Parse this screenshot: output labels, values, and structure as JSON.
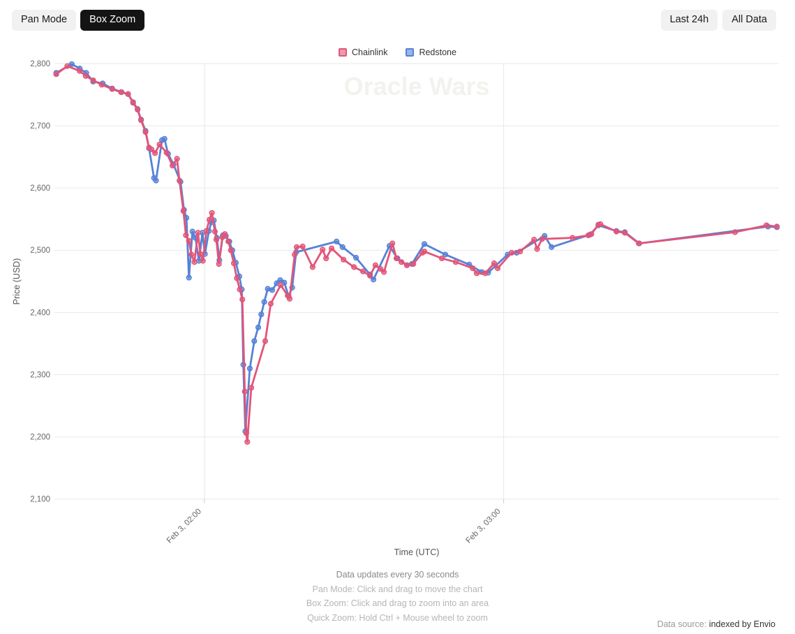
{
  "toolbar": {
    "pan_mode": "Pan Mode",
    "box_zoom": "Box Zoom",
    "last_24h": "Last 24h",
    "all_data": "All Data",
    "active_mode": "Box Zoom"
  },
  "legend": [
    {
      "name": "Redstone",
      "color": "#e15578"
    },
    {
      "name": "Chainlink",
      "color": "#5582d7"
    }
  ],
  "watermark": "Oracle Wars",
  "footer": {
    "line1": "Data updates every 30 seconds",
    "line2": "Pan Mode: Click and drag to move the chart",
    "line3": "Box Zoom: Click and drag to zoom into an area",
    "line4": "Quick Zoom: Hold Ctrl + Mouse wheel to zoom"
  },
  "data_source": {
    "prefix": "Data source: ",
    "link": "indexed by Envio"
  },
  "chart_data": {
    "type": "line",
    "title": "Oracle Wars",
    "xlabel": "Time (UTC)",
    "ylabel": "Price (USD)",
    "ylim": [
      2100,
      2800
    ],
    "grid": true,
    "legend_position": "top",
    "x_unit": "minutes after Feb 3, 01:30 UTC (estimated from axis)",
    "y_ticks": [
      {
        "label": "2,100",
        "value": 2100
      },
      {
        "label": "2,200",
        "value": 2200
      },
      {
        "label": "2,300",
        "value": 2300
      },
      {
        "label": "2,400",
        "value": 2400
      },
      {
        "label": "2,500",
        "value": 2500
      },
      {
        "label": "2,600",
        "value": 2600
      },
      {
        "label": "2,700",
        "value": 2700
      },
      {
        "label": "2,800",
        "value": 2800
      }
    ],
    "x_ticks": [
      {
        "label": "Feb 3, 02:00",
        "minute": 30
      },
      {
        "label": "Feb 3, 03:00",
        "minute": 90
      }
    ],
    "series": [
      {
        "name": "Chainlink",
        "color": "#5582d7",
        "points": [
          [
            0.3,
            2785
          ],
          [
            3.4,
            2799
          ],
          [
            5,
            2792
          ],
          [
            6.3,
            2785
          ],
          [
            7.7,
            2771
          ],
          [
            9.6,
            2768
          ],
          [
            11.5,
            2760
          ],
          [
            13.4,
            2754
          ],
          [
            14.7,
            2751
          ],
          [
            15.7,
            2738
          ],
          [
            16.6,
            2727
          ],
          [
            17.3,
            2710
          ],
          [
            18.2,
            2692
          ],
          [
            18.9,
            2664
          ],
          [
            19.9,
            2616
          ],
          [
            20.3,
            2612
          ],
          [
            21.5,
            2677
          ],
          [
            22,
            2679
          ],
          [
            22.7,
            2655
          ],
          [
            23.8,
            2638
          ],
          [
            25.2,
            2610
          ],
          [
            25.9,
            2565
          ],
          [
            26.4,
            2552
          ],
          [
            26.9,
            2456
          ],
          [
            27.6,
            2530
          ],
          [
            28.2,
            2520
          ],
          [
            28.9,
            2483
          ],
          [
            29.6,
            2528
          ],
          [
            30.1,
            2494
          ],
          [
            30.9,
            2531
          ],
          [
            31.4,
            2545
          ],
          [
            31.9,
            2548
          ],
          [
            32.5,
            2520
          ],
          [
            33,
            2484
          ],
          [
            33.7,
            2524
          ],
          [
            34.3,
            2523
          ],
          [
            35,
            2514
          ],
          [
            35.6,
            2500
          ],
          [
            36.3,
            2480
          ],
          [
            37,
            2458
          ],
          [
            37.5,
            2437
          ],
          [
            37.8,
            2316
          ],
          [
            38.2,
            2209
          ],
          [
            39.1,
            2310
          ],
          [
            40,
            2354
          ],
          [
            40.8,
            2376
          ],
          [
            41.4,
            2397
          ],
          [
            42,
            2417
          ],
          [
            42.7,
            2438
          ],
          [
            43.6,
            2436
          ],
          [
            44.5,
            2447
          ],
          [
            45.2,
            2452
          ],
          [
            46,
            2448
          ],
          [
            46.9,
            2426
          ],
          [
            47.6,
            2440
          ],
          [
            48.4,
            2497
          ],
          [
            56.5,
            2514
          ],
          [
            57.7,
            2505
          ],
          [
            60.4,
            2488
          ],
          [
            63.2,
            2461
          ],
          [
            63.9,
            2453
          ],
          [
            67.1,
            2507
          ],
          [
            68.7,
            2487
          ],
          [
            70.6,
            2476
          ],
          [
            71.6,
            2478
          ],
          [
            74.1,
            2510
          ],
          [
            78.3,
            2493
          ],
          [
            83.1,
            2477
          ],
          [
            85.6,
            2465
          ],
          [
            86.9,
            2464
          ],
          [
            90.8,
            2493
          ],
          [
            92.6,
            2496
          ],
          [
            98.2,
            2523
          ],
          [
            99.6,
            2505
          ],
          [
            107.3,
            2525
          ],
          [
            109,
            2540
          ],
          [
            112.6,
            2531
          ],
          [
            114.3,
            2529
          ],
          [
            117.2,
            2511
          ],
          [
            143,
            2538
          ],
          [
            144.8,
            2537
          ]
        ]
      },
      {
        "name": "Redstone",
        "color": "#e15578",
        "points": [
          [
            0.3,
            2783
          ],
          [
            2.5,
            2796
          ],
          [
            5,
            2788
          ],
          [
            6.2,
            2780
          ],
          [
            7.7,
            2773
          ],
          [
            9.4,
            2766
          ],
          [
            11.5,
            2759
          ],
          [
            13.3,
            2754
          ],
          [
            14.7,
            2751
          ],
          [
            15.7,
            2737
          ],
          [
            16.6,
            2726
          ],
          [
            17.3,
            2709
          ],
          [
            18.2,
            2690
          ],
          [
            18.9,
            2665
          ],
          [
            19.4,
            2662
          ],
          [
            20.1,
            2656
          ],
          [
            21,
            2670
          ],
          [
            22.4,
            2657
          ],
          [
            23.6,
            2636
          ],
          [
            24.5,
            2647
          ],
          [
            25,
            2612
          ],
          [
            25.8,
            2563
          ],
          [
            26.3,
            2524
          ],
          [
            26.9,
            2515
          ],
          [
            27.4,
            2493
          ],
          [
            28,
            2481
          ],
          [
            28.7,
            2528
          ],
          [
            29.2,
            2494
          ],
          [
            29.7,
            2483
          ],
          [
            30.4,
            2531
          ],
          [
            31,
            2549
          ],
          [
            31.5,
            2560
          ],
          [
            32.1,
            2530
          ],
          [
            32.4,
            2517
          ],
          [
            32.9,
            2478
          ],
          [
            33.6,
            2521
          ],
          [
            34.1,
            2526
          ],
          [
            34.8,
            2514
          ],
          [
            35.3,
            2500
          ],
          [
            35.9,
            2479
          ],
          [
            36.5,
            2455
          ],
          [
            37.1,
            2437
          ],
          [
            37.6,
            2421
          ],
          [
            38.1,
            2273
          ],
          [
            38.4,
            2206
          ],
          [
            38.6,
            2192
          ],
          [
            39.4,
            2279
          ],
          [
            42.2,
            2354
          ],
          [
            43.3,
            2414
          ],
          [
            45.3,
            2444
          ],
          [
            46.7,
            2427
          ],
          [
            47.1,
            2422
          ],
          [
            48.1,
            2493
          ],
          [
            48.5,
            2505
          ],
          [
            49.7,
            2506
          ],
          [
            51.7,
            2473
          ],
          [
            53.7,
            2501
          ],
          [
            54.4,
            2487
          ],
          [
            55.5,
            2503
          ],
          [
            57.9,
            2485
          ],
          [
            60,
            2473
          ],
          [
            61.8,
            2466
          ],
          [
            63.2,
            2459
          ],
          [
            64.3,
            2476
          ],
          [
            65.3,
            2470
          ],
          [
            66,
            2465
          ],
          [
            67.7,
            2511
          ],
          [
            68.5,
            2487
          ],
          [
            69.5,
            2481
          ],
          [
            70.6,
            2476
          ],
          [
            71.9,
            2478
          ],
          [
            73.7,
            2496
          ],
          [
            74.1,
            2498
          ],
          [
            77.6,
            2487
          ],
          [
            80.4,
            2481
          ],
          [
            83.8,
            2471
          ],
          [
            84.6,
            2463
          ],
          [
            86.3,
            2463
          ],
          [
            88.1,
            2479
          ],
          [
            88.8,
            2471
          ],
          [
            91.6,
            2496
          ],
          [
            93.3,
            2498
          ],
          [
            96.1,
            2517
          ],
          [
            96.7,
            2502
          ],
          [
            97.7,
            2518
          ],
          [
            103.8,
            2520
          ],
          [
            107,
            2524
          ],
          [
            107.6,
            2526
          ],
          [
            109,
            2541
          ],
          [
            109.4,
            2542
          ],
          [
            112.6,
            2530
          ],
          [
            114.3,
            2528
          ],
          [
            117.1,
            2511
          ],
          [
            136.4,
            2529
          ],
          [
            142.7,
            2540
          ],
          [
            144.8,
            2538
          ]
        ]
      }
    ]
  },
  "colors": {
    "grid": "#e8e8e8",
    "tick_text": "#666666",
    "axis_title": "#555555",
    "watermark": "#f2f2ee"
  }
}
